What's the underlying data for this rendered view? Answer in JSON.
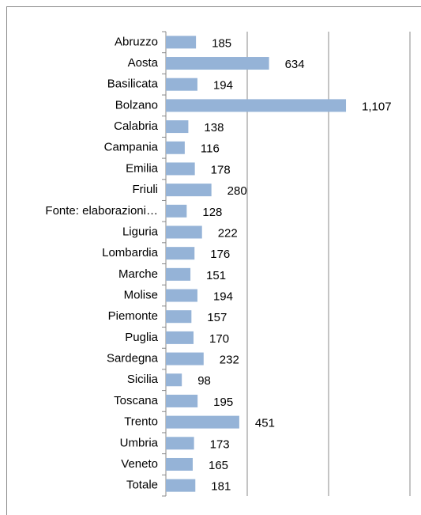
{
  "chart_data": {
    "type": "bar",
    "orientation": "horizontal",
    "categories": [
      "Abruzzo",
      "Aosta",
      "Basilicata",
      "Bolzano",
      "Calabria",
      "Campania",
      "Emilia",
      "Friuli",
      "Fonte: elaborazioni…",
      "Liguria",
      "Lombardia",
      "Marche",
      "Molise",
      "Piemonte",
      "Puglia",
      "Sardegna",
      "Sicilia",
      "Toscana",
      "Trento",
      "Umbria",
      "Veneto",
      "Totale"
    ],
    "values": [
      185,
      634,
      194,
      1107,
      138,
      116,
      178,
      280,
      128,
      222,
      176,
      151,
      194,
      157,
      170,
      232,
      98,
      195,
      451,
      173,
      165,
      181
    ],
    "value_labels": [
      "185",
      "634",
      "194",
      "1,107",
      "138",
      "116",
      "178",
      "280",
      "128",
      "222",
      "176",
      "151",
      "194",
      "157",
      "170",
      "232",
      "98",
      "195",
      "451",
      "173",
      "165",
      "181"
    ],
    "color": "#95b3d7",
    "xlim": [
      0,
      1500
    ],
    "xticks": [
      0,
      500,
      1000,
      1500
    ],
    "grid": true
  }
}
